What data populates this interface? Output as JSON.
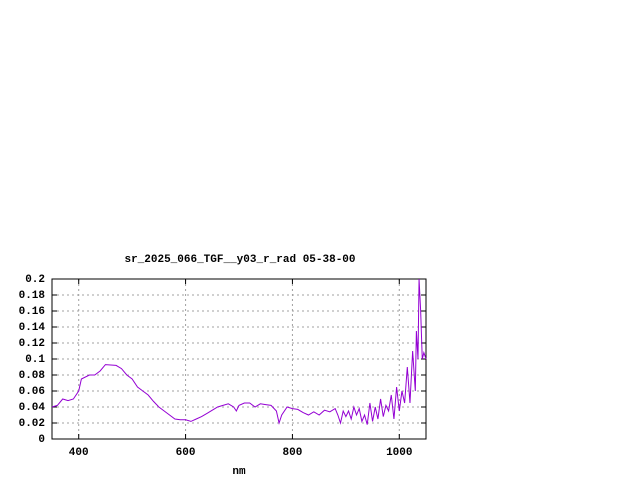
{
  "chart_data": {
    "type": "line",
    "title": "sr_2025_066_TGF__y03_r_rad 05-38-00",
    "x_label": "nm",
    "xlim": [
      350,
      1050
    ],
    "xticks": [
      400,
      600,
      800,
      1000
    ],
    "ylim": [
      0,
      0.2
    ],
    "yticks": [
      0,
      0.02,
      0.04,
      0.06,
      0.08,
      0.1,
      0.12,
      0.14,
      0.16,
      0.18,
      0.2
    ],
    "grid": true,
    "series": [
      {
        "color": "#9400d3",
        "x": [
          350,
          360,
          370,
          380,
          390,
          400,
          405,
          420,
          430,
          440,
          450,
          470,
          480,
          490,
          500,
          510,
          520,
          530,
          540,
          550,
          560,
          570,
          580,
          590,
          600,
          610,
          620,
          630,
          640,
          650,
          660,
          670,
          680,
          690,
          695,
          700,
          710,
          720,
          730,
          740,
          750,
          760,
          770,
          775,
          780,
          790,
          800,
          810,
          820,
          830,
          840,
          850,
          860,
          870,
          880,
          885,
          890,
          895,
          900,
          905,
          910,
          915,
          920,
          925,
          930,
          935,
          940,
          945,
          950,
          955,
          960,
          965,
          970,
          975,
          980,
          985,
          990,
          995,
          1000,
          1005,
          1010,
          1015,
          1020,
          1025,
          1030,
          1032,
          1035,
          1037,
          1040,
          1043,
          1046,
          1050
        ],
        "values": [
          0.04,
          0.042,
          0.05,
          0.048,
          0.05,
          0.06,
          0.075,
          0.08,
          0.08,
          0.085,
          0.093,
          0.092,
          0.088,
          0.08,
          0.075,
          0.065,
          0.06,
          0.055,
          0.047,
          0.04,
          0.035,
          0.03,
          0.025,
          0.024,
          0.024,
          0.022,
          0.025,
          0.028,
          0.032,
          0.036,
          0.04,
          0.042,
          0.044,
          0.04,
          0.035,
          0.042,
          0.045,
          0.045,
          0.04,
          0.044,
          0.043,
          0.042,
          0.035,
          0.02,
          0.03,
          0.04,
          0.038,
          0.037,
          0.033,
          0.03,
          0.034,
          0.03,
          0.036,
          0.034,
          0.038,
          0.03,
          0.02,
          0.035,
          0.028,
          0.035,
          0.025,
          0.04,
          0.03,
          0.038,
          0.022,
          0.03,
          0.018,
          0.045,
          0.022,
          0.04,
          0.025,
          0.05,
          0.028,
          0.042,
          0.035,
          0.055,
          0.025,
          0.065,
          0.035,
          0.06,
          0.045,
          0.09,
          0.045,
          0.11,
          0.06,
          0.135,
          0.1,
          0.2,
          0.16,
          0.1,
          0.108,
          0.1
        ]
      }
    ]
  }
}
